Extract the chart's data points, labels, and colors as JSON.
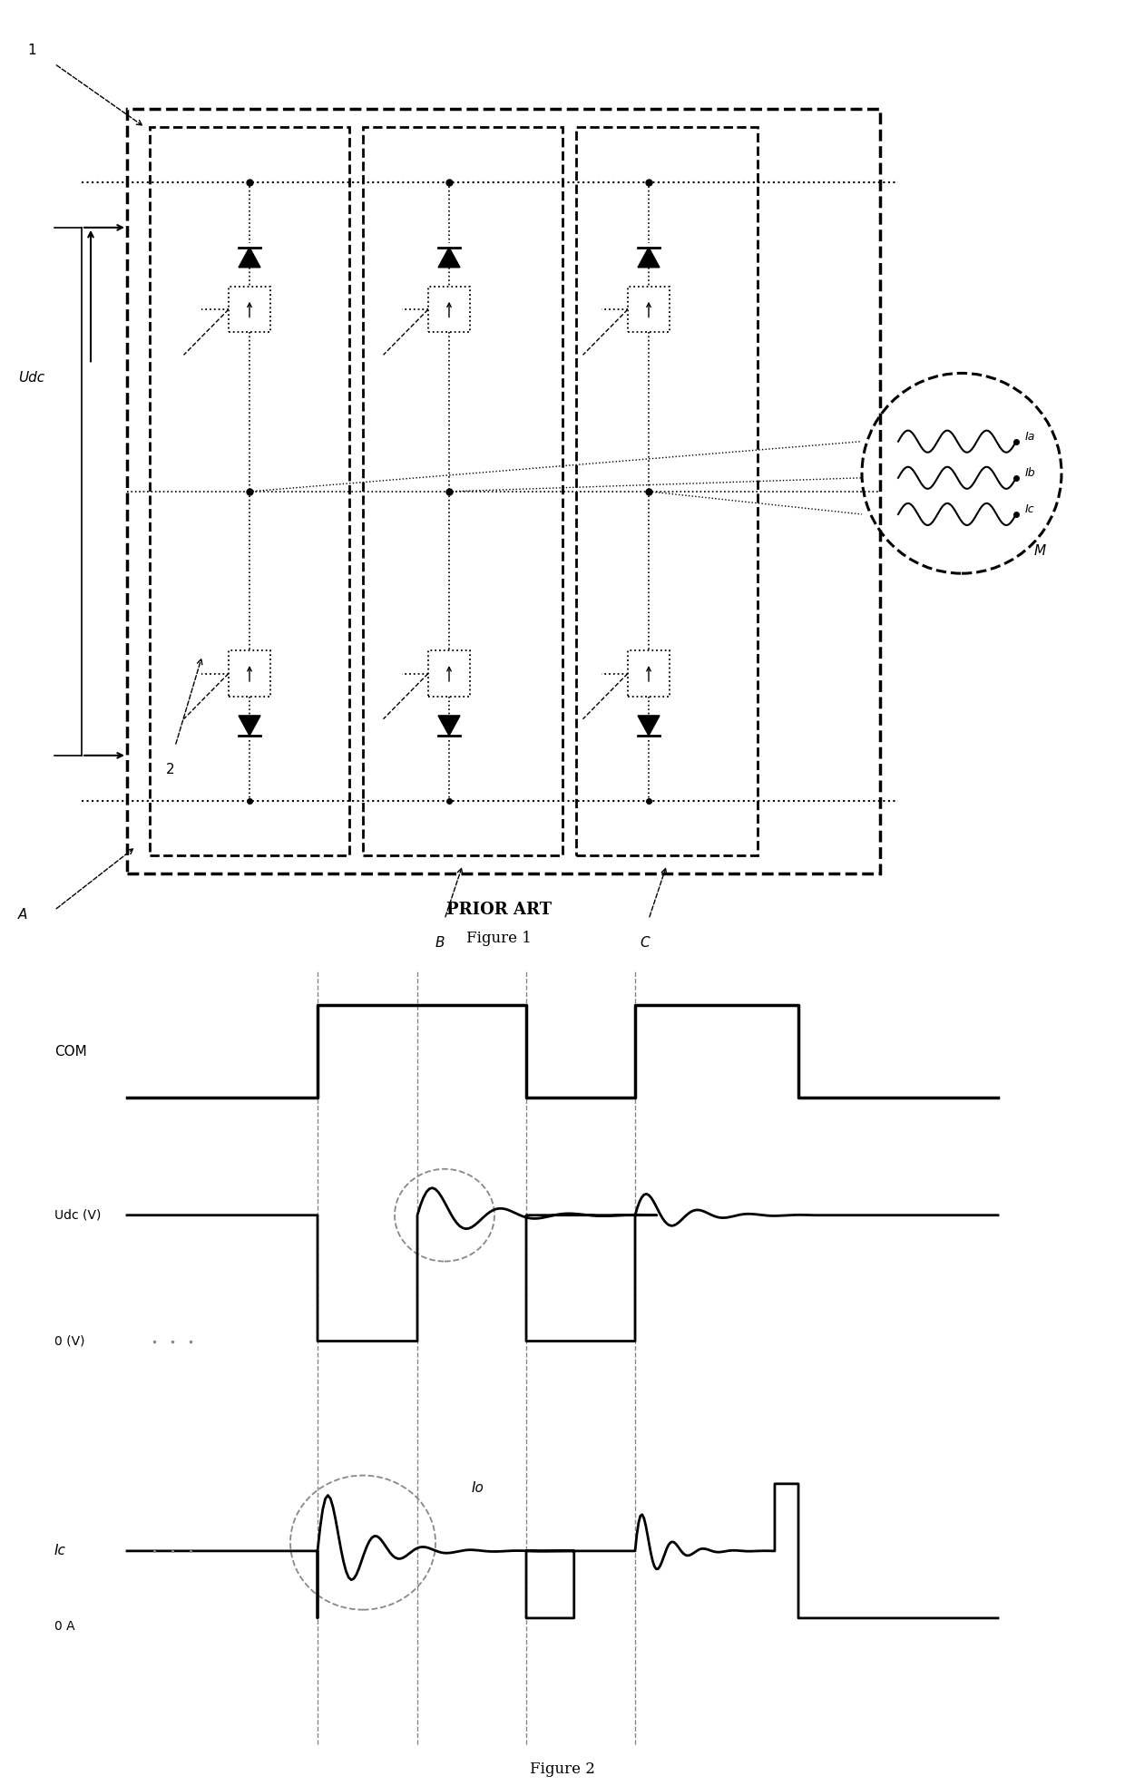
{
  "fig_width": 12.4,
  "fig_height": 19.69,
  "dpi": 100,
  "bg_color": "#ffffff",
  "lc": "#000000",
  "gray": "#888888",
  "fig1_title": "PRIOR ART",
  "fig1_subtitle": "Figure 1",
  "fig2_title": "Figure 2",
  "com_label": "COM",
  "udc_label": "Udc (V)",
  "zero_v_label": "0 (V)",
  "ic_label": "Ic",
  "zero_a_label": "0 A",
  "io_label": "Io",
  "udc_text": "Udc",
  "label_1": "1",
  "label_2": "2",
  "label_A": "A",
  "label_B": "B",
  "label_C": "C",
  "label_M": "M",
  "label_Ia": "Ia",
  "label_Ib": "Ib",
  "label_Ic2": "Ic"
}
